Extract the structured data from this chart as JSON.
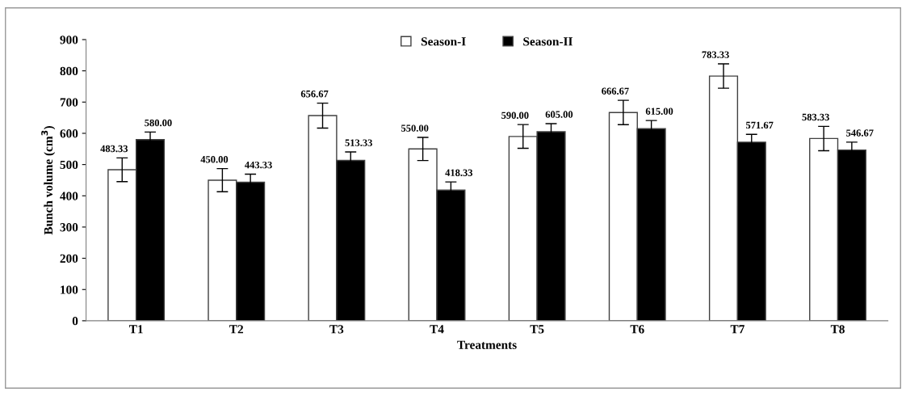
{
  "chart_data": {
    "type": "bar",
    "xlabel": "Treatments",
    "ylabel": "Bunch volume (cm$^{3}$)",
    "categories": [
      "T1",
      "T2",
      "T3",
      "T4",
      "T5",
      "T6",
      "T7",
      "T8"
    ],
    "series": [
      {
        "name": "Season-I",
        "color": "#ffffff",
        "values": [
          483.33,
          450.0,
          656.67,
          550.0,
          590.0,
          666.67,
          783.33,
          583.33
        ],
        "value_labels": [
          "483.33",
          "450.00",
          "656.67",
          "550.00",
          "590.00",
          "666.67",
          "783.33",
          "583.33"
        ],
        "errors": [
          38,
          37,
          40,
          37,
          38,
          39,
          39,
          39
        ]
      },
      {
        "name": "Season-II",
        "color": "#000000",
        "values": [
          580.0,
          443.33,
          513.33,
          418.33,
          605.0,
          615.0,
          571.67,
          546.67
        ],
        "value_labels": [
          "580.00",
          "443.33",
          "513.33",
          "418.33",
          "605.00",
          "615.00",
          "571.67",
          "546.67"
        ],
        "errors": [
          24,
          26,
          27,
          26,
          26,
          26,
          25,
          25
        ]
      }
    ],
    "ylim": [
      0,
      900
    ],
    "yticks": [
      0,
      100,
      200,
      300,
      400,
      500,
      600,
      700,
      800,
      900
    ],
    "legend": "top",
    "grid": false
  }
}
